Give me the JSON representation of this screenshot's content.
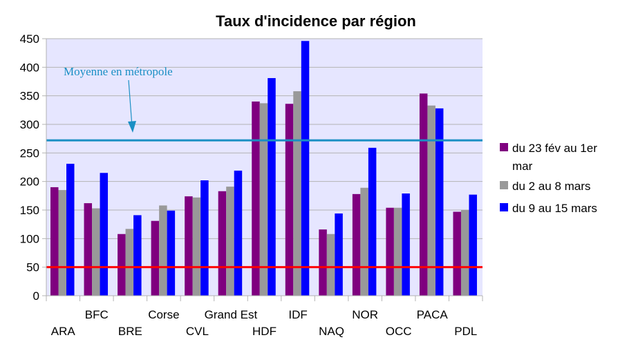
{
  "chart_data": {
    "type": "bar",
    "title": "Taux d'incidence par région",
    "xlabel": "",
    "ylabel": "",
    "ylim": [
      0,
      450
    ],
    "yticks": [
      0,
      50,
      100,
      150,
      200,
      250,
      300,
      350,
      400,
      450
    ],
    "grid": true,
    "legend_position": "right",
    "categories": [
      "ARA",
      "BFC",
      "BRE",
      "Corse",
      "CVL",
      "Grand Est",
      "HDF",
      "IDF",
      "NAQ",
      "NOR",
      "OCC",
      "PACA",
      "PDL"
    ],
    "series": [
      {
        "name": "du 23 fév au 1er mar",
        "legend_lines": [
          "du 23 fév au 1er",
          "mar"
        ],
        "color": "#7f007f",
        "values": [
          190,
          162,
          108,
          131,
          174,
          183,
          340,
          336,
          116,
          178,
          154,
          354,
          147
        ]
      },
      {
        "name": "du 2 au 8 mars",
        "legend_lines": [
          "du 2 au 8 mars"
        ],
        "color": "#999999",
        "values": [
          185,
          153,
          117,
          158,
          172,
          191,
          337,
          358,
          108,
          189,
          154,
          333,
          150
        ]
      },
      {
        "name": "du 9 au 15 mars",
        "legend_lines": [
          "du 9 au 15 mars"
        ],
        "color": "#0000ff",
        "values": [
          231,
          215,
          141,
          149,
          202,
          219,
          381,
          446,
          144,
          259,
          179,
          328,
          177
        ]
      }
    ],
    "reference_lines": [
      {
        "value": 272,
        "color": "#1a8fc4",
        "label": "Moyenne en métropole"
      },
      {
        "value": 50,
        "color": "#ff0000",
        "label": ""
      }
    ],
    "colors": {
      "plot_background": "#e6e6ff",
      "grid": "#b3b3b3"
    }
  }
}
